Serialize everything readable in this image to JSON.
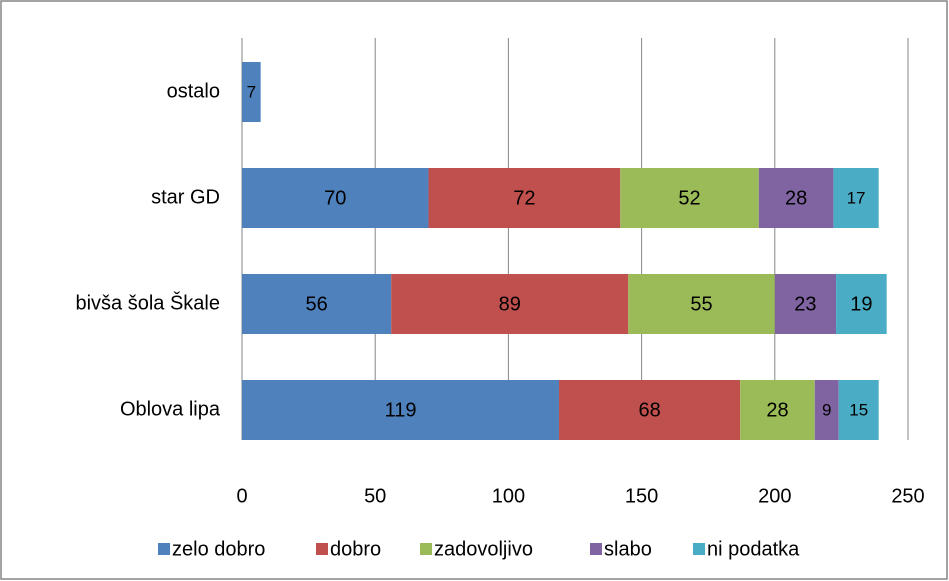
{
  "chart_data": {
    "type": "stacked-barh",
    "categories": [
      "ostalo",
      "star GD",
      "bivša šola Škale",
      "Oblova lipa"
    ],
    "series": [
      {
        "name": "zelo dobro",
        "color": "#4f81bd",
        "values": [
          7,
          70,
          56,
          119
        ]
      },
      {
        "name": "dobro",
        "color": "#c0504d",
        "values": [
          null,
          72,
          89,
          68
        ]
      },
      {
        "name": "zadovoljivo",
        "color": "#9bbb59",
        "values": [
          null,
          52,
          55,
          28
        ]
      },
      {
        "name": "slabo",
        "color": "#8064a2",
        "values": [
          null,
          28,
          23,
          9
        ]
      },
      {
        "name": "ni podatka",
        "color": "#4bacc6",
        "values": [
          null,
          17,
          19,
          15
        ]
      }
    ],
    "xlim": [
      0,
      250
    ],
    "xticks": [
      0,
      50,
      100,
      150,
      200,
      250
    ],
    "grid": true,
    "legend": "bottom"
  }
}
